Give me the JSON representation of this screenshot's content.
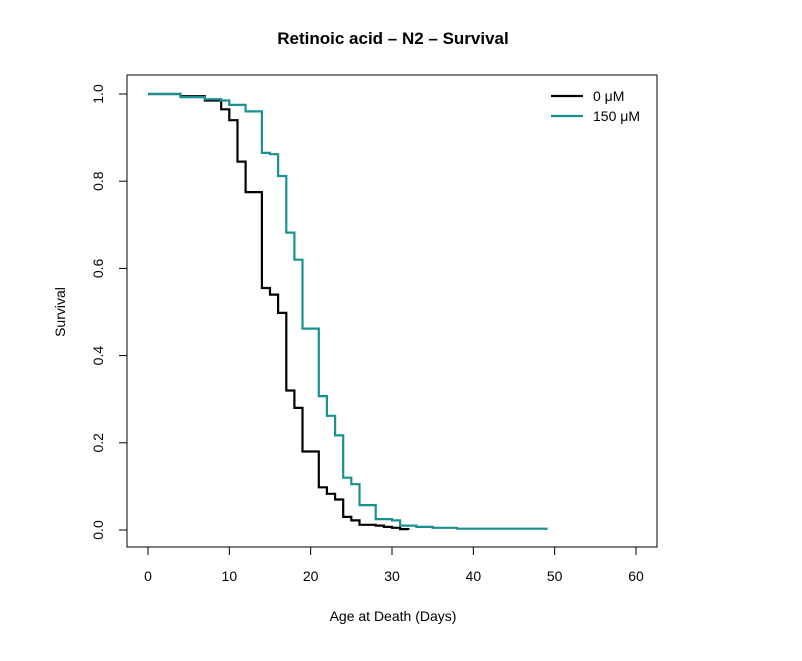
{
  "chart_data": {
    "type": "line",
    "step": true,
    "title": "Retinoic acid – N2 – Survival",
    "xlabel": "Age at Death (Days)",
    "ylabel": "Survival",
    "xlim": [
      0,
      60
    ],
    "ylim": [
      0,
      1
    ],
    "xticks": [
      0,
      10,
      20,
      30,
      40,
      50,
      60
    ],
    "yticks": [
      0.0,
      0.2,
      0.4,
      0.6,
      0.8,
      1.0
    ],
    "xtick_labels": [
      "0",
      "10",
      "20",
      "30",
      "40",
      "50",
      "60"
    ],
    "ytick_labels": [
      "0.0",
      "0.2",
      "0.4",
      "0.6",
      "0.8",
      "1.0"
    ],
    "grid": false,
    "legend_position": "top-right",
    "series": [
      {
        "name": "0 μM",
        "color": "#000000",
        "x": [
          0,
          4,
          7,
          9,
          10,
          11,
          12,
          14,
          15,
          16,
          17,
          18,
          19,
          21,
          22,
          23,
          24,
          25,
          26,
          28,
          29,
          30,
          31,
          32
        ],
        "y": [
          1.0,
          0.995,
          0.985,
          0.965,
          0.94,
          0.845,
          0.775,
          0.555,
          0.54,
          0.498,
          0.32,
          0.28,
          0.18,
          0.098,
          0.083,
          0.07,
          0.03,
          0.022,
          0.012,
          0.01,
          0.007,
          0.005,
          0.002,
          0.0
        ]
      },
      {
        "name": "150 μM",
        "color": "#1a9090",
        "x": [
          0,
          4,
          7,
          9,
          10,
          12,
          14,
          15,
          16,
          17,
          18,
          19,
          21,
          22,
          23,
          24,
          25,
          26,
          28,
          30,
          31,
          33,
          35,
          38,
          49
        ],
        "y": [
          1.0,
          0.993,
          0.988,
          0.985,
          0.975,
          0.96,
          0.865,
          0.862,
          0.812,
          0.682,
          0.62,
          0.462,
          0.307,
          0.262,
          0.217,
          0.12,
          0.105,
          0.057,
          0.025,
          0.022,
          0.01,
          0.007,
          0.005,
          0.003,
          0.0
        ]
      }
    ]
  }
}
